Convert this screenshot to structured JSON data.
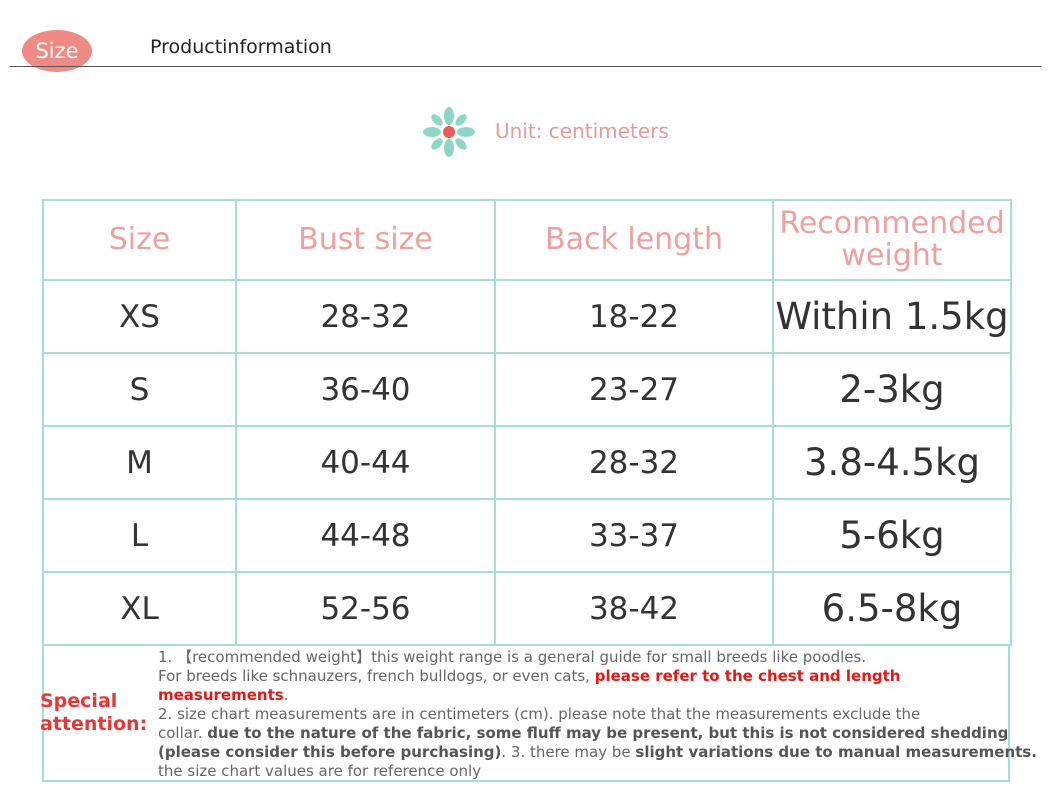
{
  "header": {
    "badge": "Size",
    "title": "Productinformation"
  },
  "unit": "Unit: centimeters",
  "table": {
    "columns": [
      "Size",
      "Bust size",
      "Back length",
      "Recommended weight"
    ],
    "rows": [
      [
        "XS",
        "28-32",
        "18-22",
        "Within 1.5kg"
      ],
      [
        "S",
        "36-40",
        "23-27",
        "2-3kg"
      ],
      [
        "M",
        "40-44",
        "28-32",
        "3.8-4.5kg"
      ],
      [
        "L",
        "44-48",
        "33-37",
        "5-6kg"
      ],
      [
        "XL",
        "52-56",
        "38-42",
        "6.5-8kg"
      ]
    ]
  },
  "notes": {
    "label": "Special attention:",
    "lines": [
      [
        "1. 【recommended weight】this weight range is a general guide for small breeds like poodles."
      ],
      [
        "For breeds like schnauzers, french bulldogs, or even cats, ",
        "please refer to the chest and length"
      ],
      [
        "measurements",
        "."
      ],
      [
        "2. size chart measurements are in centimeters (cm). please note that the measurements exclude the"
      ],
      [
        "collar. ",
        "due to the nature of the fabric, some fluff may be present, but this is not considered shedding"
      ],
      [
        "(please consider this before purchasing)",
        ". 3. there may be ",
        "slight variations due to manual measurements."
      ],
      [
        "the size chart values are for reference only"
      ]
    ]
  }
}
